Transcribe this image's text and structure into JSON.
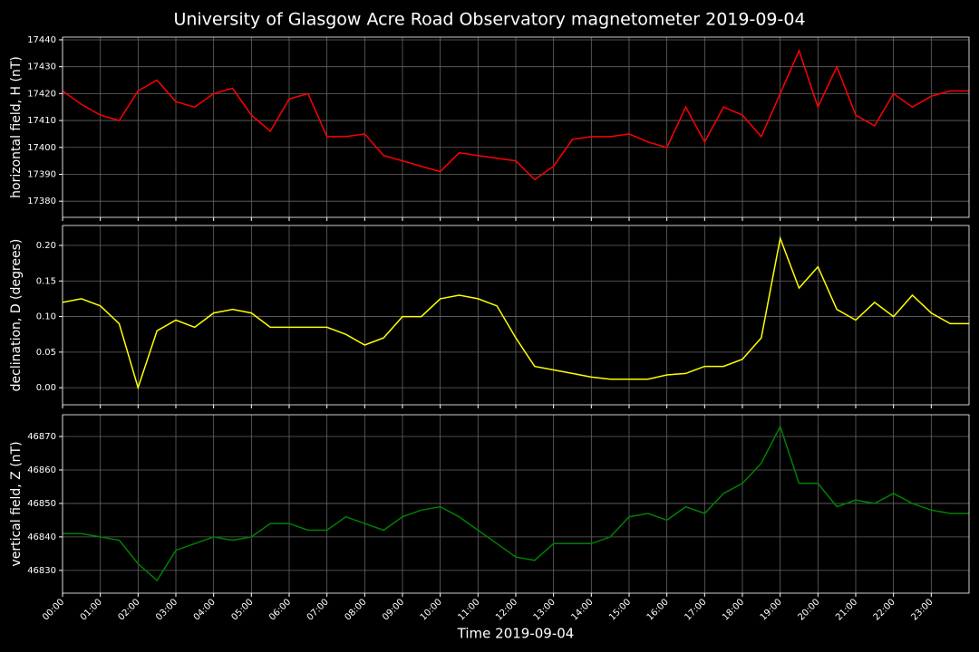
{
  "title": "University of Glasgow Acre Road Observatory magnetometer 2019-09-04",
  "xlabel": "Time 2019-09-04",
  "x": [
    0,
    0.5,
    1,
    1.5,
    2,
    2.5,
    3,
    3.5,
    4,
    4.5,
    5,
    5.5,
    6,
    6.5,
    7,
    7.5,
    8,
    8.5,
    9,
    9.5,
    10,
    10.5,
    11,
    11.5,
    12,
    12.5,
    13,
    13.5,
    14,
    14.5,
    15,
    15.5,
    16,
    16.5,
    17,
    17.5,
    18,
    18.5,
    19,
    19.5,
    20,
    20.5,
    21,
    21.5,
    22,
    22.5,
    23,
    23.5,
    24
  ],
  "xlim": [
    0,
    24
  ],
  "xticks": [
    {
      "value": 0,
      "label": "00:00"
    },
    {
      "value": 1,
      "label": "01:00"
    },
    {
      "value": 2,
      "label": "02:00"
    },
    {
      "value": 3,
      "label": "03:00"
    },
    {
      "value": 4,
      "label": "04:00"
    },
    {
      "value": 5,
      "label": "05:00"
    },
    {
      "value": 6,
      "label": "06:00"
    },
    {
      "value": 7,
      "label": "07:00"
    },
    {
      "value": 8,
      "label": "08:00"
    },
    {
      "value": 9,
      "label": "09:00"
    },
    {
      "value": 10,
      "label": "10:00"
    },
    {
      "value": 11,
      "label": "11:00"
    },
    {
      "value": 12,
      "label": "12:00"
    },
    {
      "value": 13,
      "label": "13:00"
    },
    {
      "value": 14,
      "label": "14:00"
    },
    {
      "value": 15,
      "label": "15:00"
    },
    {
      "value": 16,
      "label": "16:00"
    },
    {
      "value": 17,
      "label": "17:00"
    },
    {
      "value": 18,
      "label": "18:00"
    },
    {
      "value": 19,
      "label": "19:00"
    },
    {
      "value": 20,
      "label": "20:00"
    },
    {
      "value": 21,
      "label": "21:00"
    },
    {
      "value": 22,
      "label": "22:00"
    },
    {
      "value": 23,
      "label": "23:00"
    }
  ],
  "chart_data": [
    {
      "type": "line",
      "ylabel": "horizontal field, H (nT)",
      "color": "#ff0000",
      "grid": true,
      "ylim": [
        17374,
        17441
      ],
      "yticks": [
        17380,
        17390,
        17400,
        17410,
        17420,
        17430,
        17440
      ],
      "values": [
        17421,
        17416,
        17412,
        17410,
        17421,
        17425,
        17417,
        17415,
        17420,
        17422,
        17412,
        17406,
        17418,
        17420,
        17404,
        17404,
        17405,
        17397,
        17395,
        17393,
        17391,
        17398,
        17397,
        17396,
        17395,
        17388,
        17393,
        17403,
        17404,
        17404,
        17405,
        17402,
        17400,
        17415,
        17402,
        17415,
        17412,
        17404,
        17420,
        17436,
        17415,
        17430,
        17412,
        17408,
        17420,
        17415,
        17419,
        17421,
        17421
      ]
    },
    {
      "type": "line",
      "ylabel": "declination, D (degrees)",
      "color": "#ffff00",
      "grid": true,
      "ylim": [
        -0.024,
        0.228
      ],
      "yticks": [
        {
          "value": 0,
          "label": "0.00"
        },
        {
          "value": 0.05,
          "label": "0.05"
        },
        {
          "value": 0.1,
          "label": "0.10"
        },
        {
          "value": 0.15,
          "label": "0.15"
        },
        {
          "value": 0.2,
          "label": "0.20"
        }
      ],
      "values": [
        0.12,
        0.125,
        0.115,
        0.09,
        0.0,
        0.08,
        0.095,
        0.085,
        0.105,
        0.11,
        0.105,
        0.085,
        0.085,
        0.085,
        0.085,
        0.075,
        0.06,
        0.07,
        0.1,
        0.1,
        0.125,
        0.13,
        0.125,
        0.115,
        0.07,
        0.03,
        0.025,
        0.02,
        0.015,
        0.012,
        0.012,
        0.012,
        0.018,
        0.02,
        0.03,
        0.03,
        0.04,
        0.07,
        0.21,
        0.14,
        0.17,
        0.11,
        0.095,
        0.12,
        0.1,
        0.13,
        0.105,
        0.09,
        0.09
      ]
    },
    {
      "type": "line",
      "ylabel": "vertical field, Z (nT)",
      "color": "#008000",
      "grid": true,
      "ylim": [
        46823.2,
        46876.5
      ],
      "yticks": [
        46830,
        46840,
        46850,
        46860,
        46870
      ],
      "values": [
        46841,
        46841,
        46840,
        46839,
        46832,
        46827,
        46836,
        46838,
        46840,
        46839,
        46840,
        46844,
        46844,
        46842,
        46842,
        46846,
        46844,
        46842,
        46846,
        46848,
        46849,
        46846,
        46842,
        46838,
        46834,
        46833,
        46838,
        46838,
        46838,
        46840,
        46846,
        46847,
        46845,
        46849,
        46847,
        46853,
        46856,
        46862,
        46873,
        46856,
        46856,
        46849,
        46851,
        46850,
        46853,
        46850,
        46848,
        46847,
        46847
      ]
    }
  ]
}
